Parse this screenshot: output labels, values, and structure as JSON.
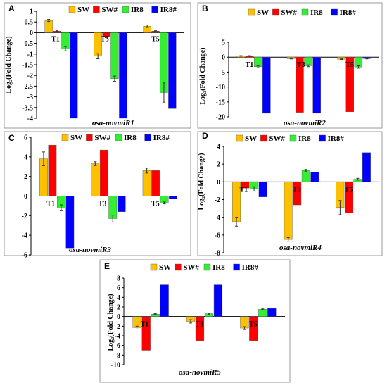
{
  "colors": {
    "SW": "#ffc000",
    "SW#": "#ff0000",
    "IR8": "#33ee33",
    "IR8#": "#0000ff",
    "frame": "#999999"
  },
  "chart_data": [
    {
      "type": "bar",
      "panel": "A",
      "annotation": "osa-novmiR1",
      "ylabel": "Log₂(Fold Change)",
      "categories": [
        "T1",
        "T3",
        "T5"
      ],
      "ylim": [
        -4,
        1
      ],
      "yticks": [
        1,
        0.5,
        0,
        -0.5,
        -1,
        -1.5,
        -2,
        -2.5,
        -3,
        -3.5,
        -4
      ],
      "ytick_labels": [
        "1",
        "0.5",
        "0",
        "-0.5",
        "-1",
        "-1.5",
        "-2",
        "-2.5",
        "-3",
        "-3.5",
        "-4"
      ],
      "legend_position": "top",
      "series": [
        {
          "name": "SW",
          "values": [
            0.57,
            -1.1,
            0.3
          ],
          "errors": [
            0.05,
            0.12,
            0.06
          ]
        },
        {
          "name": "SW#",
          "values": [
            0.07,
            -0.2,
            0.07
          ],
          "errors": [
            0.02,
            0.03,
            0.02
          ]
        },
        {
          "name": "IR8",
          "values": [
            -0.75,
            -2.15,
            -2.8
          ],
          "errors": [
            0.1,
            0.12,
            0.45
          ]
        },
        {
          "name": "IR8#",
          "values": [
            -4.0,
            -4.0,
            -3.55
          ],
          "errors": [
            0,
            0,
            0
          ]
        }
      ]
    },
    {
      "type": "bar",
      "panel": "B",
      "annotation": "osa-novmiR2",
      "ylabel": "Log₂(Fold Change)",
      "categories": [
        "T1",
        "T3",
        "T5"
      ],
      "ylim": [
        -20,
        5
      ],
      "yticks": [
        5,
        0,
        -5,
        -10,
        -15,
        -20
      ],
      "ytick_labels": [
        "5",
        "0",
        "-5",
        "-10",
        "-15",
        "-20"
      ],
      "legend_position": "top",
      "series": [
        {
          "name": "SW",
          "values": [
            0.4,
            -0.5,
            -0.7
          ],
          "errors": [
            0.1,
            0.1,
            0.1
          ]
        },
        {
          "name": "SW#",
          "values": [
            0.4,
            -18.5,
            -18.3
          ],
          "errors": [
            0.1,
            0,
            0
          ]
        },
        {
          "name": "IR8",
          "values": [
            -3.2,
            -2.9,
            -3.3
          ],
          "errors": [
            0.3,
            0.3,
            0.4
          ]
        },
        {
          "name": "IR8#",
          "values": [
            -18.8,
            -18.8,
            -0.5
          ],
          "errors": [
            0,
            0,
            0.1
          ]
        }
      ]
    },
    {
      "type": "bar",
      "panel": "C",
      "annotation": "osa-novmiR3",
      "ylabel": "",
      "categories": [
        "T1",
        "T3",
        "T5"
      ],
      "ylim": [
        -6,
        6
      ],
      "yticks": [
        6,
        4,
        2,
        0,
        -2,
        -4,
        -6
      ],
      "ytick_labels": [
        "6",
        "4",
        "2",
        "0",
        "-2",
        "-4",
        "-6"
      ],
      "legend_position": "top",
      "series": [
        {
          "name": "SW",
          "values": [
            3.8,
            3.3,
            2.6
          ],
          "errors": [
            0.7,
            0.2,
            0.25
          ]
        },
        {
          "name": "SW#",
          "values": [
            5.2,
            4.7,
            2.6
          ],
          "errors": [
            0,
            0,
            0
          ]
        },
        {
          "name": "IR8",
          "values": [
            -1.2,
            -2.3,
            -0.7
          ],
          "errors": [
            0.3,
            0.35,
            0.1
          ]
        },
        {
          "name": "IR8#",
          "values": [
            -5.3,
            -1.6,
            -0.3
          ],
          "errors": [
            0,
            0,
            0
          ]
        }
      ]
    },
    {
      "type": "bar",
      "panel": "D",
      "annotation": "osa-novmiR4",
      "ylabel": "Log₂(Fold Change)",
      "categories": [
        "T1",
        "T3",
        "T5"
      ],
      "ylim": [
        -8,
        4
      ],
      "yticks": [
        4,
        2,
        0,
        -2,
        -4,
        -6,
        -8
      ],
      "ytick_labels": [
        "4",
        "2",
        "0",
        "-2",
        "-4",
        "-6",
        "-8"
      ],
      "legend_position": "top",
      "series": [
        {
          "name": "SW",
          "values": [
            -4.5,
            -6.5,
            -2.9
          ],
          "errors": [
            0.5,
            0.2,
            0.8
          ]
        },
        {
          "name": "SW#",
          "values": [
            -0.7,
            -2.6,
            -3.5
          ],
          "errors": [
            0,
            0,
            0
          ]
        },
        {
          "name": "IR8",
          "values": [
            -0.8,
            1.3,
            0.3
          ],
          "errors": [
            0.25,
            0.1,
            0.1
          ]
        },
        {
          "name": "IR8#",
          "values": [
            -1.7,
            1.1,
            3.3
          ],
          "errors": [
            0,
            0,
            0
          ]
        }
      ]
    },
    {
      "type": "bar",
      "panel": "E",
      "annotation": "osa-novmiR5",
      "ylabel": "Log₂(Fold Change)",
      "categories": [
        "T1",
        "T3",
        "T5"
      ],
      "ylim": [
        -10,
        8
      ],
      "yticks": [
        8,
        6,
        4,
        2,
        0,
        -2,
        -4,
        -6,
        -8,
        -10
      ],
      "ytick_labels": [
        "8",
        "6",
        "4",
        "2",
        "0",
        "-2",
        "-4",
        "-6",
        "-8",
        "-10"
      ],
      "legend_position": "top",
      "series": [
        {
          "name": "SW",
          "values": [
            -2.3,
            -1.0,
            -2.4
          ],
          "errors": [
            0.3,
            0.35,
            0.3
          ]
        },
        {
          "name": "SW#",
          "values": [
            -7.0,
            -5.0,
            -5.0
          ],
          "errors": [
            0,
            0,
            0
          ]
        },
        {
          "name": "IR8",
          "values": [
            0.5,
            0.6,
            1.5
          ],
          "errors": [
            0.1,
            0.1,
            0.1
          ]
        },
        {
          "name": "IR8#",
          "values": [
            6.6,
            6.6,
            1.7
          ],
          "errors": [
            0,
            0,
            0
          ]
        }
      ]
    }
  ]
}
